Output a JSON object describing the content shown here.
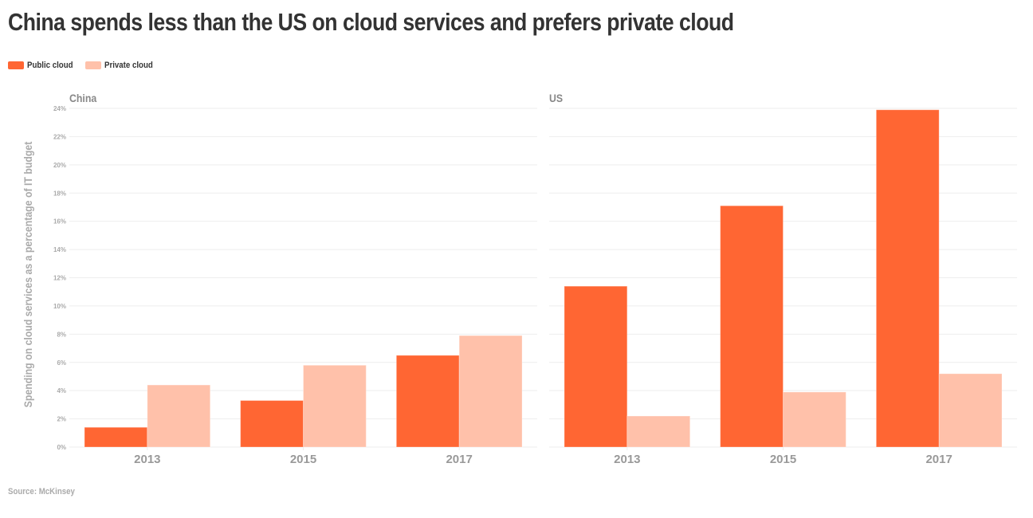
{
  "title": "China spends less than the US on cloud services and prefers private cloud",
  "source": "Source: McKinsey",
  "colors": {
    "public": "#ff6633",
    "private": "#ffc1aa",
    "grid": "#eeeeee",
    "text": "#333333"
  },
  "legend": [
    {
      "label": "Public cloud",
      "color": "#ff6633"
    },
    {
      "label": "Private cloud",
      "color": "#ffc1aa"
    }
  ],
  "chart_data": [
    {
      "type": "bar",
      "title": "China",
      "categories": [
        "2013",
        "2015",
        "2017"
      ],
      "series": [
        {
          "name": "Public cloud",
          "values": [
            1.4,
            3.3,
            6.5
          ]
        },
        {
          "name": "Private cloud",
          "values": [
            4.4,
            5.8,
            7.9
          ]
        }
      ],
      "xlabel": "",
      "ylabel": "Spending on cloud services as a percentage of IT budget",
      "ylim": [
        0,
        24
      ],
      "yticks": [
        0,
        2,
        4,
        6,
        8,
        10,
        12,
        14,
        16,
        18,
        20,
        22,
        24
      ],
      "ytick_labels": [
        "0%",
        "2%",
        "4%",
        "6%",
        "8%",
        "10%",
        "12%",
        "14%",
        "16%",
        "18%",
        "20%",
        "22%",
        "24%"
      ],
      "grid": true,
      "legend_position": "top-left"
    },
    {
      "type": "bar",
      "title": "US",
      "categories": [
        "2013",
        "2015",
        "2017"
      ],
      "series": [
        {
          "name": "Public cloud",
          "values": [
            11.4,
            17.1,
            23.9
          ]
        },
        {
          "name": "Private cloud",
          "values": [
            2.2,
            3.9,
            5.2
          ]
        }
      ],
      "xlabel": "",
      "ylabel": "",
      "ylim": [
        0,
        24
      ],
      "grid": true
    }
  ]
}
